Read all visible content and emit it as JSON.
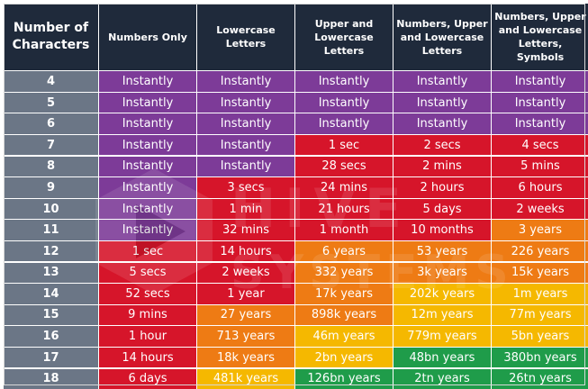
{
  "headers": [
    "Number of Characters",
    "Numbers Only",
    "Lowercase Letters",
    "Upper and Lowercase Letters",
    "Numbers, Upper and Lowercase Letters",
    "Numbers, Upper and Lowercase Letters, Symbols"
  ],
  "watermark": {
    "line1": "HIVE",
    "line2": "SYSTEMS"
  },
  "colors": {
    "header": "#1f2a3b",
    "number_col": "#6b7686",
    "instantly": "#7d3b98",
    "red": "#d6152a",
    "orange": "#ee7b14",
    "yellow": "#f5b800",
    "green": "#1f9c4a"
  },
  "rows": [
    {
      "n": "4",
      "cells": [
        [
          "Instantly",
          "instantly"
        ],
        [
          "Instantly",
          "instantly"
        ],
        [
          "Instantly",
          "instantly"
        ],
        [
          "Instantly",
          "instantly"
        ],
        [
          "Instantly",
          "instantly"
        ]
      ]
    },
    {
      "n": "5",
      "cells": [
        [
          "Instantly",
          "instantly"
        ],
        [
          "Instantly",
          "instantly"
        ],
        [
          "Instantly",
          "instantly"
        ],
        [
          "Instantly",
          "instantly"
        ],
        [
          "Instantly",
          "instantly"
        ]
      ]
    },
    {
      "n": "6",
      "cells": [
        [
          "Instantly",
          "instantly"
        ],
        [
          "Instantly",
          "instantly"
        ],
        [
          "Instantly",
          "instantly"
        ],
        [
          "Instantly",
          "instantly"
        ],
        [
          "Instantly",
          "instantly"
        ]
      ]
    },
    {
      "n": "7",
      "cells": [
        [
          "Instantly",
          "instantly"
        ],
        [
          "Instantly",
          "instantly"
        ],
        [
          "1 sec",
          "red"
        ],
        [
          "2 secs",
          "red"
        ],
        [
          "4 secs",
          "red"
        ]
      ]
    },
    {
      "n": "8",
      "cells": [
        [
          "Instantly",
          "instantly"
        ],
        [
          "Instantly",
          "instantly"
        ],
        [
          "28 secs",
          "red"
        ],
        [
          "2 mins",
          "red"
        ],
        [
          "5 mins",
          "red"
        ]
      ]
    },
    {
      "n": "9",
      "cells": [
        [
          "Instantly",
          "instantly"
        ],
        [
          "3 secs",
          "red"
        ],
        [
          "24 mins",
          "red"
        ],
        [
          "2 hours",
          "red"
        ],
        [
          "6 hours",
          "red"
        ]
      ]
    },
    {
      "n": "10",
      "cells": [
        [
          "Instantly",
          "instantly"
        ],
        [
          "1 min",
          "red"
        ],
        [
          "21 hours",
          "red"
        ],
        [
          "5 days",
          "red"
        ],
        [
          "2 weeks",
          "red"
        ]
      ]
    },
    {
      "n": "11",
      "cells": [
        [
          "Instantly",
          "instantly"
        ],
        [
          "32 mins",
          "red"
        ],
        [
          "1 month",
          "red"
        ],
        [
          "10 months",
          "red"
        ],
        [
          "3 years",
          "orange"
        ]
      ]
    },
    {
      "n": "12",
      "cells": [
        [
          "1 sec",
          "red"
        ],
        [
          "14 hours",
          "red"
        ],
        [
          "6 years",
          "orange"
        ],
        [
          "53 years",
          "orange"
        ],
        [
          "226 years",
          "orange"
        ]
      ]
    },
    {
      "n": "13",
      "cells": [
        [
          "5 secs",
          "red"
        ],
        [
          "2 weeks",
          "red"
        ],
        [
          "332 years",
          "orange"
        ],
        [
          "3k years",
          "orange"
        ],
        [
          "15k years",
          "orange"
        ]
      ]
    },
    {
      "n": "14",
      "cells": [
        [
          "52 secs",
          "red"
        ],
        [
          "1 year",
          "red"
        ],
        [
          "17k years",
          "orange"
        ],
        [
          "202k years",
          "yellow"
        ],
        [
          "1m years",
          "yellow"
        ]
      ]
    },
    {
      "n": "15",
      "cells": [
        [
          "9 mins",
          "red"
        ],
        [
          "27 years",
          "orange"
        ],
        [
          "898k years",
          "orange"
        ],
        [
          "12m years",
          "yellow"
        ],
        [
          "77m years",
          "yellow"
        ]
      ]
    },
    {
      "n": "16",
      "cells": [
        [
          "1 hour",
          "red"
        ],
        [
          "713 years",
          "orange"
        ],
        [
          "46m years",
          "yellow"
        ],
        [
          "779m years",
          "yellow"
        ],
        [
          "5bn years",
          "yellow"
        ]
      ]
    },
    {
      "n": "17",
      "cells": [
        [
          "14 hours",
          "red"
        ],
        [
          "18k years",
          "orange"
        ],
        [
          "2bn years",
          "yellow"
        ],
        [
          "48bn years",
          "green"
        ],
        [
          "380bn years",
          "green"
        ]
      ]
    },
    {
      "n": "18",
      "cells": [
        [
          "6 days",
          "red"
        ],
        [
          "481k years",
          "yellow"
        ],
        [
          "126bn years",
          "green"
        ],
        [
          "2tn years",
          "green"
        ],
        [
          "26tn years",
          "green"
        ]
      ]
    }
  ]
}
